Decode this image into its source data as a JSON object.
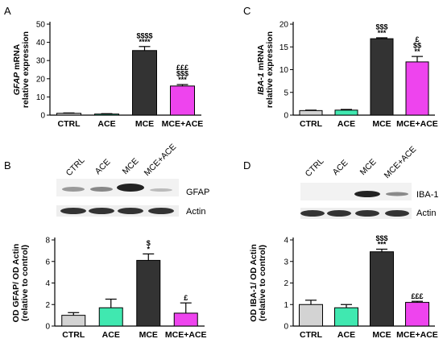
{
  "panels": {
    "A": {
      "letter": "A"
    },
    "B": {
      "letter": "B",
      "blot_lanes": [
        "CTRL",
        "ACE",
        "MCE",
        "MCE+ACE"
      ],
      "blot_rows": [
        "GFAP",
        "Actin"
      ]
    },
    "C": {
      "letter": "C"
    },
    "D": {
      "letter": "D",
      "blot_lanes": [
        "CTRL",
        "ACE",
        "MCE",
        "MCE+ACE"
      ],
      "blot_rows": [
        "IBA-1",
        "Actin"
      ]
    }
  },
  "colors": {
    "CTRL": "#d3d3d3",
    "ACE": "#40e8b0",
    "MCE": "#333333",
    "MCE+ACE": "#ee44ee"
  },
  "chart_data": [
    {
      "id": "A",
      "type": "bar",
      "categories": [
        "CTRL",
        "ACE",
        "MCE",
        "MCE+ACE"
      ],
      "values": [
        1,
        0.6,
        35.5,
        16
      ],
      "errors": [
        0.2,
        0.2,
        2.2,
        0.8
      ],
      "ylabel_italic": "GFAP",
      "ylabel_rest": " mRNA",
      "ylabel2": "relative expression",
      "ylim": [
        0,
        50
      ],
      "yticks": [
        0,
        10,
        20,
        30,
        40,
        50
      ],
      "annotations": [
        [],
        [],
        [
          "$$$$",
          "****"
        ],
        [
          "£££",
          "$$$",
          "***"
        ]
      ]
    },
    {
      "id": "C",
      "type": "bar",
      "categories": [
        "CTRL",
        "ACE",
        "MCE",
        "MCE+ACE"
      ],
      "values": [
        1,
        1.1,
        16.8,
        11.7
      ],
      "errors": [
        0.1,
        0.15,
        0.2,
        1.2
      ],
      "ylabel_italic": "IBA-1",
      "ylabel_rest": " mRNA",
      "ylabel2": "relative expression",
      "ylim": [
        0,
        20
      ],
      "yticks": [
        0,
        5,
        10,
        15,
        20
      ],
      "annotations": [
        [],
        [],
        [
          "$$$",
          "***"
        ],
        [
          "£",
          "$$",
          "**"
        ]
      ]
    },
    {
      "id": "B",
      "type": "bar",
      "categories": [
        "CTRL",
        "ACE",
        "MCE",
        "MCE+ACE"
      ],
      "values": [
        1,
        1.7,
        6.1,
        1.2
      ],
      "errors": [
        0.25,
        0.8,
        0.6,
        0.95
      ],
      "ylabel_italic": "",
      "ylabel_rest": "OD GFAP/ OD Actin",
      "ylabel2": "(relative to control)",
      "ylim": [
        0,
        8
      ],
      "yticks": [
        0,
        2,
        4,
        6,
        8
      ],
      "annotations": [
        [],
        [],
        [
          "$",
          "*"
        ],
        [
          "£"
        ]
      ]
    },
    {
      "id": "D",
      "type": "bar",
      "categories": [
        "CTRL",
        "ACE",
        "MCE",
        "MCE+ACE"
      ],
      "values": [
        1,
        0.85,
        3.45,
        1.1
      ],
      "errors": [
        0.2,
        0.15,
        0.12,
        0.05
      ],
      "ylabel_italic": "",
      "ylabel_rest": "OD IBA-1/ OD Actin",
      "ylabel2": "(relative to control)",
      "ylim": [
        0,
        4
      ],
      "yticks": [
        0,
        1,
        2,
        3,
        4
      ],
      "annotations": [
        [],
        [],
        [
          "$$$",
          "***"
        ],
        [
          "£££"
        ]
      ]
    }
  ]
}
